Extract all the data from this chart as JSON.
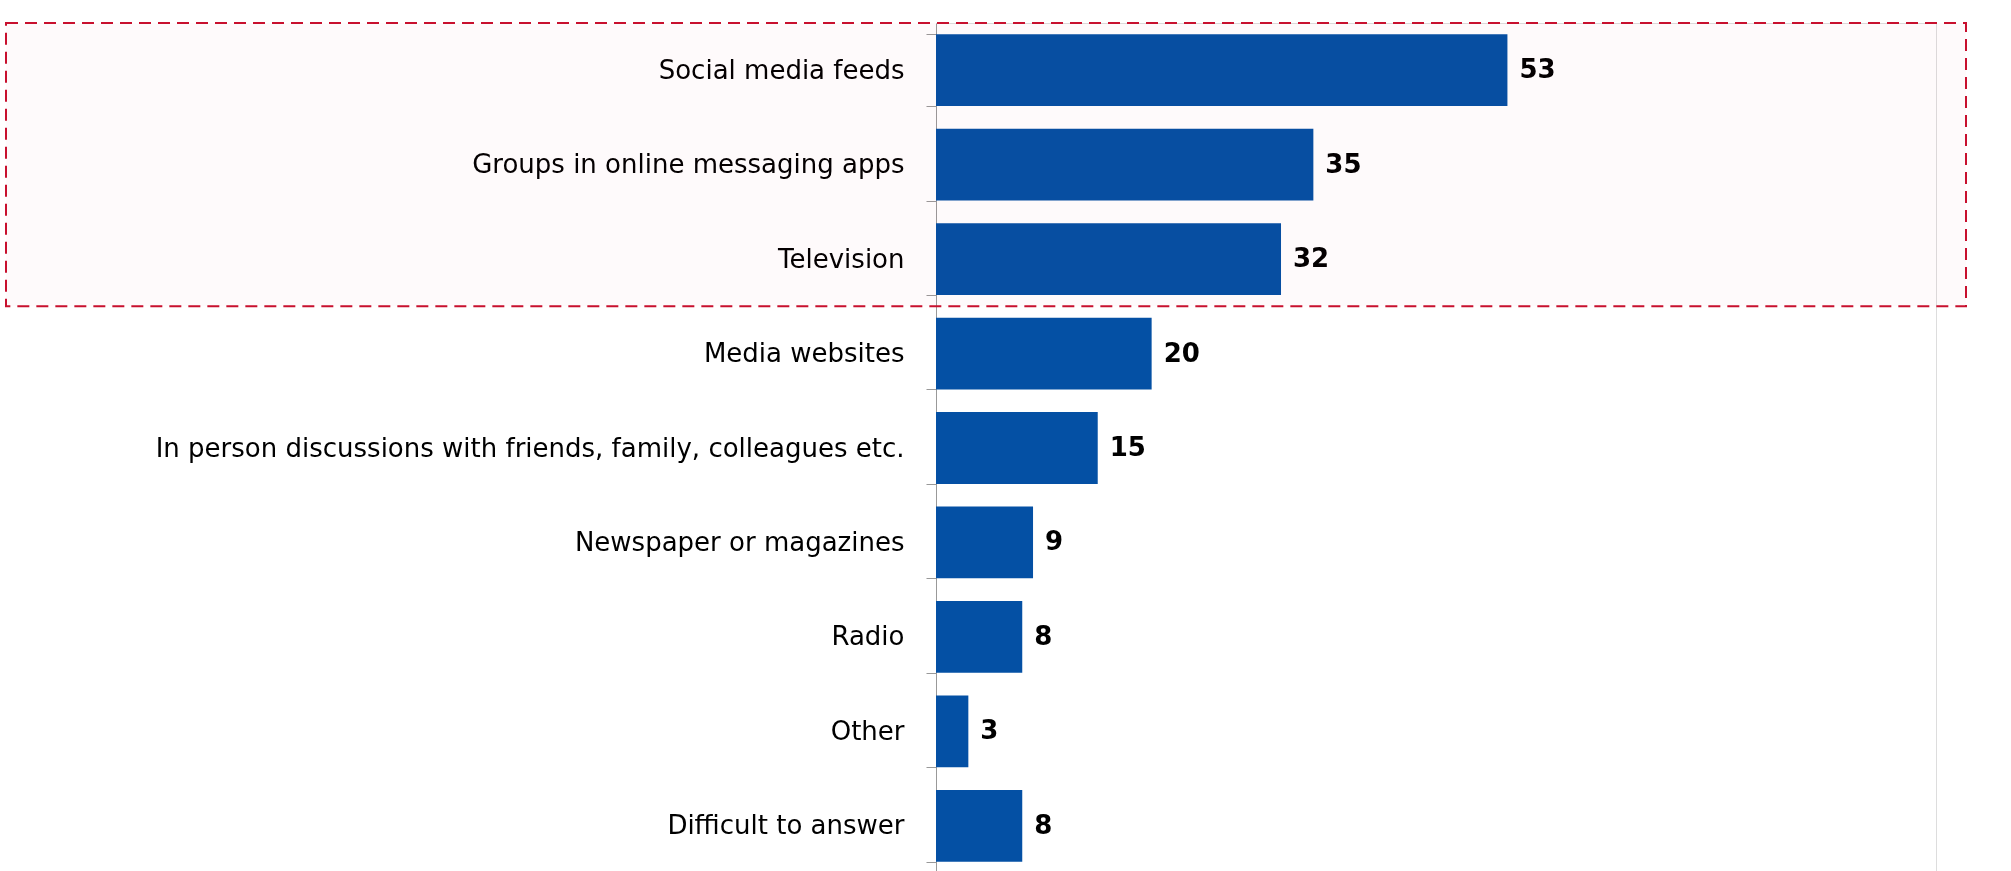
{
  "chart_data": {
    "type": "bar",
    "orientation": "horizontal",
    "categories": [
      "Social media feeds",
      "Groups in online messaging apps",
      "Television",
      "Media websites",
      "In person discussions with friends, family, colleagues etc.",
      "Newspaper or magazines",
      "Radio",
      "Other",
      "Difficult to answer"
    ],
    "values": [
      53,
      35,
      32,
      20,
      15,
      9,
      8,
      3,
      8
    ],
    "color": "#0450a4",
    "data_labels": true,
    "bands": [
      {
        "axis": "y",
        "from": "Social media feeds",
        "to": "Television",
        "color": "#c8102e"
      }
    ]
  }
}
